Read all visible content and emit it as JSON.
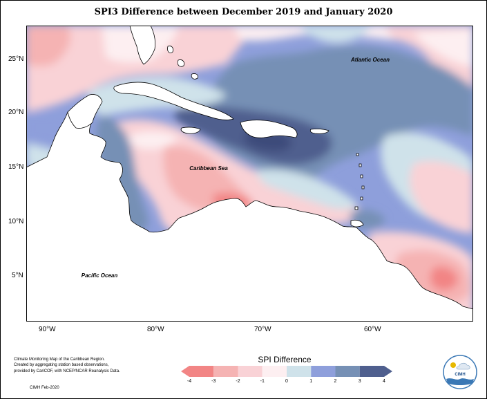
{
  "title": "SPI3 Difference between December 2019 and January 2020",
  "map": {
    "labels": {
      "atlantic": "Atlantic Ocean",
      "caribbean": "Caribbean Sea",
      "pacific": "Pacific Ocean"
    },
    "lat_ticks": [
      "25°N",
      "20°N",
      "15°N",
      "10°N",
      "5°N"
    ],
    "lon_ticks": [
      "90°W",
      "80°W",
      "70°W",
      "60°W"
    ]
  },
  "legend": {
    "title": "SPI Difference",
    "ticks": [
      "-4",
      "-3",
      "-2",
      "-1",
      "0",
      "1",
      "2",
      "3",
      "4"
    ],
    "colors": [
      "#f28585",
      "#f5b3b3",
      "#f9d2d6",
      "#fdeff1",
      "#cfe2ea",
      "#8e9fdb",
      "#7690b5",
      "#4f5f8e"
    ]
  },
  "credit": {
    "line1": "Climate Monitoring Map of the Caribbean Region.",
    "line2": "Created by aggregating station based observations,",
    "line3": "provided by CariCOF, with NCEP/NCAR Reanalysis Data.",
    "date": "CIMH Feb-2020"
  },
  "logo": {
    "text": "CIMH"
  }
}
